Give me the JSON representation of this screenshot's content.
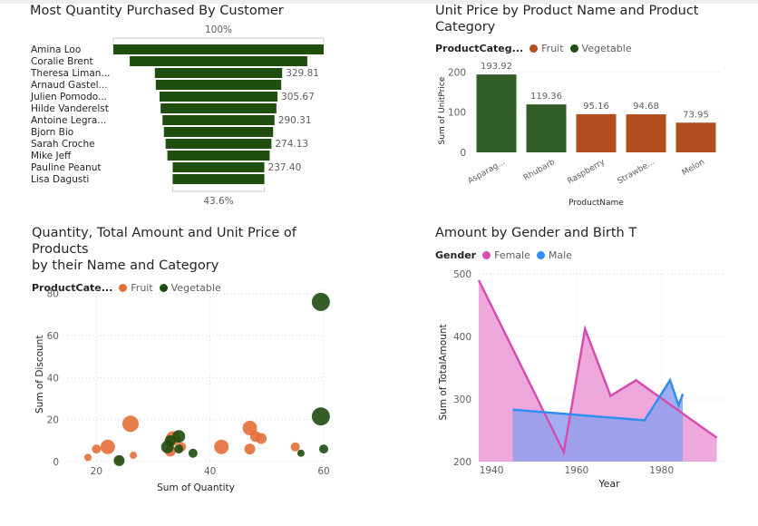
{
  "colors": {
    "funnel": "#1f4e0f",
    "fruit": "#b34d1d",
    "vegetable": "#315e27",
    "scatter_fruit": "#e36f36",
    "scatter_veg": "#1d4d10",
    "female": "#d64db1",
    "male": "#2f8ef0"
  },
  "chart_data": [
    {
      "id": "funnel",
      "type": "bar",
      "subtype": "funnel",
      "title": "Most Quantity Purchased By Customer",
      "top_label": "100%",
      "bottom_label": "43.6%",
      "categories": [
        "Amina Loo",
        "Coralie Brent",
        "Theresa Liman...",
        "Arnaud Gastel...",
        "Julien Pomodo...",
        "Hilde Vanderelst",
        "Antoine Legra...",
        "Bjorn Bio",
        "Sarah Croche",
        "Mike Jeff",
        "Pauline Peanut",
        "Lisa Dagusti"
      ],
      "values": [
        545,
        460,
        329.81,
        325,
        305.67,
        300,
        290.31,
        283,
        274.13,
        265,
        237.4,
        237.6
      ],
      "data_labels": [
        "",
        "",
        "329.81",
        "",
        "305.67",
        "",
        "290.31",
        "",
        "274.13",
        "",
        "237.40",
        ""
      ]
    },
    {
      "id": "unitprice",
      "type": "bar",
      "title": "Unit Price by Product Name and Product\nCategory",
      "legend_title": "ProductCateg...",
      "legend": [
        "Fruit",
        "Vegetable"
      ],
      "categories": [
        "Asparag...",
        "Rhubarb",
        "Raspberry",
        "Strawbe...",
        "Melon"
      ],
      "values": [
        193.92,
        119.36,
        95.16,
        94.68,
        73.95
      ],
      "value_labels": [
        "193.92",
        "119.36",
        "95.16",
        "94.68",
        "73.95"
      ],
      "series_category": [
        "Vegetable",
        "Vegetable",
        "Fruit",
        "Fruit",
        "Fruit"
      ],
      "xlabel": "ProductName",
      "ylabel": "Sum of UnitPrice",
      "ylim": [
        0,
        210
      ],
      "yticks": [
        0,
        100,
        200
      ],
      "ytick_labels": [
        "0",
        "100",
        "200"
      ]
    },
    {
      "id": "scatter",
      "type": "scatter",
      "title": "Quantity, Total Amount and Unit Price of Products\nby their Name and Category",
      "legend_title": "ProductCate...",
      "legend": [
        "Fruit",
        "Vegetable"
      ],
      "xlabel": "Sum of Quantity",
      "ylabel": "Sum of Discount",
      "xlim": [
        15,
        60
      ],
      "ylim": [
        0,
        82
      ],
      "xticks": [
        20,
        40,
        60
      ],
      "xtick_labels": [
        "20",
        "40",
        "60"
      ],
      "yticks": [
        0,
        20,
        40,
        60,
        80
      ],
      "ytick_labels": [
        "0",
        "20",
        "40",
        "60",
        "80"
      ],
      "points": [
        {
          "x": 18.5,
          "y": 2,
          "size": 4,
          "cat": "Fruit"
        },
        {
          "x": 20,
          "y": 6,
          "size": 5,
          "cat": "Fruit"
        },
        {
          "x": 22,
          "y": 7,
          "size": 8,
          "cat": "Fruit"
        },
        {
          "x": 24,
          "y": 1,
          "size": 4,
          "cat": "Fruit"
        },
        {
          "x": 26,
          "y": 18,
          "size": 9,
          "cat": "Fruit"
        },
        {
          "x": 26.5,
          "y": 3,
          "size": 4,
          "cat": "Fruit"
        },
        {
          "x": 33,
          "y": 5,
          "size": 6,
          "cat": "Fruit"
        },
        {
          "x": 33.5,
          "y": 11,
          "size": 8,
          "cat": "Fruit"
        },
        {
          "x": 35,
          "y": 7,
          "size": 5,
          "cat": "Fruit"
        },
        {
          "x": 42,
          "y": 7,
          "size": 8,
          "cat": "Fruit"
        },
        {
          "x": 47,
          "y": 16,
          "size": 8,
          "cat": "Fruit"
        },
        {
          "x": 47,
          "y": 6,
          "size": 6,
          "cat": "Fruit"
        },
        {
          "x": 48,
          "y": 12,
          "size": 6,
          "cat": "Fruit"
        },
        {
          "x": 49,
          "y": 11,
          "size": 6,
          "cat": "Fruit"
        },
        {
          "x": 55,
          "y": 7,
          "size": 5,
          "cat": "Fruit"
        },
        {
          "x": 24,
          "y": 0.5,
          "size": 6,
          "cat": "Vegetable"
        },
        {
          "x": 32.5,
          "y": 7,
          "size": 7,
          "cat": "Vegetable"
        },
        {
          "x": 33,
          "y": 10,
          "size": 6,
          "cat": "Vegetable"
        },
        {
          "x": 34.5,
          "y": 12,
          "size": 7,
          "cat": "Vegetable"
        },
        {
          "x": 34.5,
          "y": 6,
          "size": 5,
          "cat": "Vegetable"
        },
        {
          "x": 37,
          "y": 4,
          "size": 5,
          "cat": "Vegetable"
        },
        {
          "x": 56,
          "y": 4,
          "size": 4,
          "cat": "Vegetable"
        },
        {
          "x": 60,
          "y": 6,
          "size": 5,
          "cat": "Vegetable"
        },
        {
          "x": 59.5,
          "y": 21.5,
          "size": 10,
          "cat": "Vegetable"
        },
        {
          "x": 59.5,
          "y": 76,
          "size": 10,
          "cat": "Vegetable"
        }
      ]
    },
    {
      "id": "gender",
      "type": "area",
      "title": "Amount by Gender and Birth T",
      "legend_title": "Gender",
      "legend": [
        "Female",
        "Male"
      ],
      "xlabel": "Year",
      "ylabel": "Sum of TotalAmount",
      "xlim": [
        1937,
        1995
      ],
      "ylim": [
        200,
        500
      ],
      "xticks": [
        1940,
        1960,
        1980
      ],
      "xtick_labels": [
        "1940",
        "1960",
        "1980"
      ],
      "yticks": [
        200,
        300,
        400,
        500
      ],
      "ytick_labels": [
        "200",
        "300",
        "400",
        "500"
      ],
      "series": [
        {
          "name": "Female",
          "x": [
            1937,
            1957,
            1962,
            1968,
            1974,
            1993
          ],
          "y": [
            490,
            215,
            412,
            305,
            330,
            238
          ]
        },
        {
          "name": "Male",
          "x": [
            1945,
            1976,
            1982,
            1984,
            1985
          ],
          "y": [
            283,
            266,
            330,
            290,
            308
          ]
        }
      ]
    }
  ]
}
